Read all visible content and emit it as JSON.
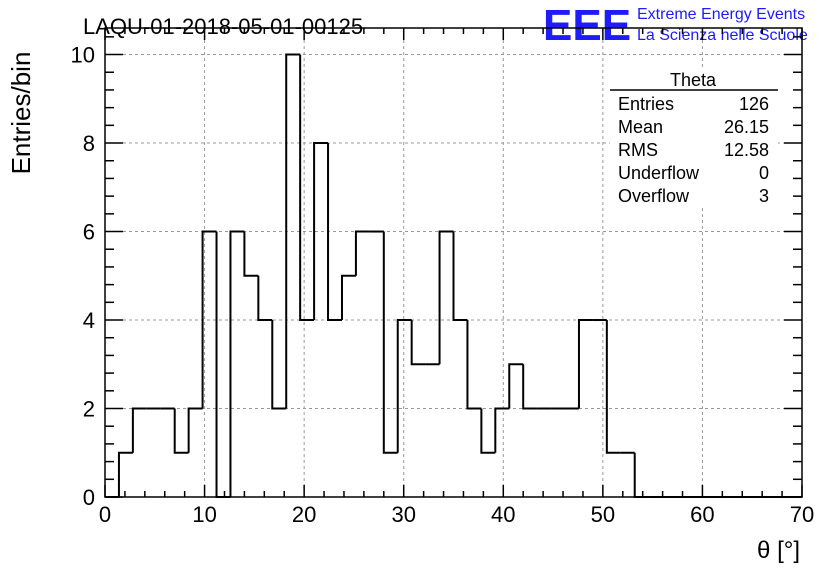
{
  "title": "LAQU-01-2018-05-01-00125",
  "logo": {
    "mark": "EEE",
    "line1": "Extreme Energy Events",
    "line2": "La Scienza nelle Scuole",
    "color": "#1c1cff"
  },
  "stats": {
    "name": "Theta",
    "rows": [
      {
        "label": "Entries",
        "value": "126"
      },
      {
        "label": "Mean",
        "value": "26.15"
      },
      {
        "label": "RMS",
        "value": "12.58"
      },
      {
        "label": "Underflow",
        "value": "0"
      },
      {
        "label": "Overflow",
        "value": "3"
      }
    ]
  },
  "chart_data": {
    "type": "bar",
    "title": "LAQU-01-2018-05-01-00125",
    "xlabel": "θ [°]",
    "ylabel": "Entries/bin",
    "xlim": [
      0,
      70
    ],
    "ylim": [
      0,
      10.6
    ],
    "bin_width": 1.4,
    "bin_edges_start": 0,
    "values": [
      0,
      1,
      2,
      2,
      2,
      1,
      2,
      6,
      0,
      6,
      5,
      4,
      2,
      10,
      4,
      8,
      4,
      5,
      6,
      6,
      1,
      4,
      3,
      3,
      6,
      4,
      2,
      1,
      2,
      3,
      2,
      2,
      2,
      2,
      4,
      4,
      1,
      1,
      0,
      0,
      0,
      0,
      0,
      0,
      0,
      0,
      0,
      0,
      0,
      0
    ],
    "xticks": [
      0,
      10,
      20,
      30,
      40,
      50,
      60,
      70
    ],
    "yticks": [
      0,
      2,
      4,
      6,
      8,
      10
    ],
    "grid": true,
    "line_color": "#000000",
    "grid_color": "#999999"
  }
}
